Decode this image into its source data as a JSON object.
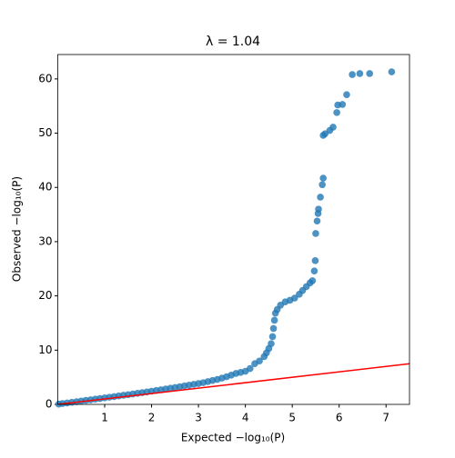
{
  "chart_data": {
    "type": "scatter",
    "title": "λ = 1.04",
    "xlabel": "Expected −log₁₀(P)",
    "ylabel": "Observed −log₁₀(P)",
    "xlim": [
      0,
      7.5
    ],
    "ylim": [
      0,
      64.5
    ],
    "xticks": [
      1,
      2,
      3,
      4,
      5,
      6,
      7
    ],
    "yticks": [
      0,
      10,
      20,
      30,
      40,
      50,
      60
    ],
    "series": [
      {
        "type": "scatter",
        "color": "#1f77b4",
        "x": [
          0.02,
          0.1,
          0.2,
          0.3,
          0.4,
          0.5,
          0.6,
          0.7,
          0.8,
          0.9,
          1.0,
          1.1,
          1.2,
          1.3,
          1.4,
          1.5,
          1.6,
          1.7,
          1.8,
          1.9,
          2.0,
          2.1,
          2.2,
          2.3,
          2.4,
          2.5,
          2.6,
          2.7,
          2.8,
          2.9,
          3.0,
          3.1,
          3.2,
          3.3,
          3.4,
          3.5,
          3.6,
          3.7,
          3.8,
          3.9,
          4.0,
          4.1,
          4.2,
          4.3,
          4.4,
          4.45,
          4.5,
          4.55,
          4.58,
          4.6,
          4.62,
          4.64,
          4.68,
          4.75,
          4.85,
          4.95,
          5.05,
          5.15,
          5.22,
          5.3,
          5.38,
          5.43,
          5.47,
          5.49,
          5.5,
          5.53,
          5.55,
          5.56,
          5.6,
          5.64,
          5.66,
          5.66,
          5.7,
          5.8,
          5.87,
          5.95,
          5.97,
          6.07,
          6.16,
          6.28,
          6.44,
          6.65,
          7.12
        ],
        "values": [
          0.05,
          0.15,
          0.27,
          0.38,
          0.5,
          0.62,
          0.74,
          0.85,
          0.97,
          1.08,
          1.2,
          1.32,
          1.44,
          1.56,
          1.68,
          1.8,
          1.92,
          2.04,
          2.17,
          2.3,
          2.43,
          2.56,
          2.7,
          2.84,
          2.98,
          3.12,
          3.26,
          3.4,
          3.55,
          3.7,
          3.85,
          4.0,
          4.2,
          4.4,
          4.6,
          4.85,
          5.1,
          5.4,
          5.7,
          5.9,
          6.1,
          6.6,
          7.5,
          8.0,
          8.8,
          9.5,
          10.3,
          11.2,
          12.5,
          14,
          15.5,
          16.8,
          17.5,
          18.3,
          18.9,
          19.2,
          19.6,
          20.3,
          21,
          21.7,
          22.4,
          22.8,
          24.6,
          26.5,
          31.5,
          33.8,
          35.2,
          36,
          38.2,
          40.5,
          41.7,
          49.6,
          49.9,
          50.5,
          51.1,
          53.8,
          55.2,
          55.3,
          57.1,
          60.8,
          61,
          61,
          61.3
        ]
      },
      {
        "type": "line",
        "color": "#ff0000",
        "x": [
          0,
          7.5
        ],
        "values": [
          0,
          7.5
        ]
      }
    ]
  }
}
